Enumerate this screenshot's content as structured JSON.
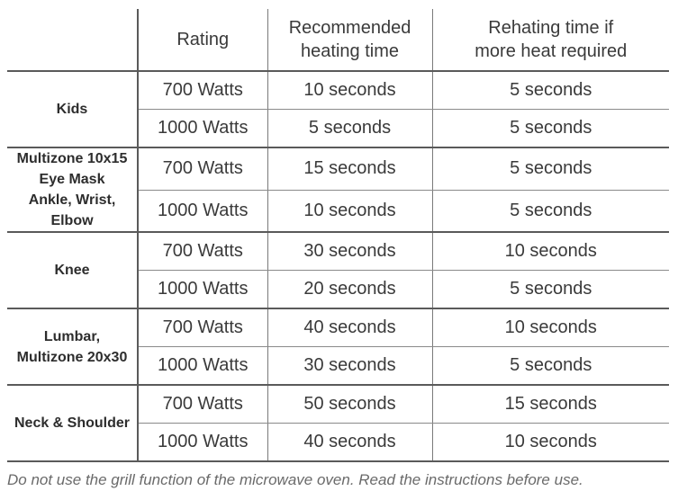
{
  "headers": {
    "zone": "",
    "rating": "Rating",
    "heating": [
      "Recommended",
      "heating time"
    ],
    "reheating": [
      "Rehating time if",
      "more heat required"
    ]
  },
  "groups": [
    {
      "zone": [
        "Kids"
      ],
      "rows": [
        [
          "700 Watts",
          "10 seconds",
          "5 seconds"
        ],
        [
          "1000 Watts",
          "5 seconds",
          "5 seconds"
        ]
      ]
    },
    {
      "zone": [
        "Multizone 10x15",
        "Eye Mask",
        "Ankle, Wrist, Elbow"
      ],
      "rows": [
        [
          "700 Watts",
          "15 seconds",
          "5 seconds"
        ],
        [
          "1000 Watts",
          "10 seconds",
          "5 seconds"
        ]
      ]
    },
    {
      "zone": [
        "Knee"
      ],
      "rows": [
        [
          "700 Watts",
          "30 seconds",
          "10 seconds"
        ],
        [
          "1000 Watts",
          "20 seconds",
          "5 seconds"
        ]
      ]
    },
    {
      "zone": [
        "Lumbar,",
        "Multizone 20x30"
      ],
      "rows": [
        [
          "700 Watts",
          "40 seconds",
          "10 seconds"
        ],
        [
          "1000 Watts",
          "30 seconds",
          "5 seconds"
        ]
      ]
    },
    {
      "zone": [
        "Neck & Shoulder"
      ],
      "rows": [
        [
          "700 Watts",
          "50 seconds",
          "15 seconds"
        ],
        [
          "1000 Watts",
          "40 seconds",
          "10 seconds"
        ]
      ]
    }
  ],
  "note": "Do not use the grill function of the microwave oven. Read the instructions before use."
}
